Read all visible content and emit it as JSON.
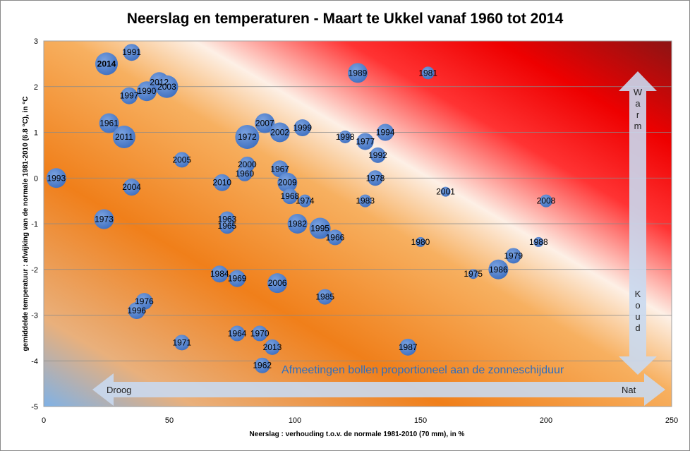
{
  "chart_data": {
    "type": "bubble",
    "title": "Neerslag en temperaturen - Maart te Ukkel vanaf 1960 tot 2014",
    "xlabel": "Neerslag : verhouding t.o.v. de normale 1981-2010 (70 mm), in %",
    "ylabel": "gemiddelde temperatuur : afwijking  van de normale 1981-2010 (6.8 °C), in °C",
    "xlim": [
      0,
      250
    ],
    "ylim": [
      -5,
      3
    ],
    "x_ticks": [
      "0",
      "50",
      "100",
      "150",
      "200",
      "250"
    ],
    "y_ticks": [
      "3",
      "2",
      "1",
      "0",
      "-1",
      "-2",
      "-3",
      "-4",
      "-5"
    ],
    "grid": "horizontal",
    "highlight_year": "2014",
    "highlight_color": "#ffff00",
    "bubble_color": "#4f7fcf",
    "annotations": {
      "droog": "Droog",
      "nat": "Nat",
      "warm": "Warm",
      "koud": "Koud",
      "note": "Afmeetingen bollen proportioneel aan de zonneschijduur"
    },
    "points": [
      {
        "year": "2014",
        "x": 25,
        "y": 2.5,
        "size": 16
      },
      {
        "year": "1991",
        "x": 35,
        "y": 2.75,
        "size": 12
      },
      {
        "year": "2012",
        "x": 46,
        "y": 2.1,
        "size": 14
      },
      {
        "year": "2003",
        "x": 49,
        "y": 2.0,
        "size": 16
      },
      {
        "year": "1990",
        "x": 41,
        "y": 1.9,
        "size": 14
      },
      {
        "year": "1997",
        "x": 34,
        "y": 1.8,
        "size": 12
      },
      {
        "year": "1989",
        "x": 125,
        "y": 2.3,
        "size": 14
      },
      {
        "year": "1981",
        "x": 153,
        "y": 2.3,
        "size": 9
      },
      {
        "year": "1961",
        "x": 26,
        "y": 1.2,
        "size": 14
      },
      {
        "year": "2011",
        "x": 32,
        "y": 0.9,
        "size": 16
      },
      {
        "year": "2007",
        "x": 88,
        "y": 1.2,
        "size": 14
      },
      {
        "year": "1972",
        "x": 81,
        "y": 0.9,
        "size": 17
      },
      {
        "year": "2002",
        "x": 94,
        "y": 1.0,
        "size": 14
      },
      {
        "year": "1999",
        "x": 103,
        "y": 1.1,
        "size": 12
      },
      {
        "year": "1994",
        "x": 136,
        "y": 1.0,
        "size": 12
      },
      {
        "year": "1998",
        "x": 120,
        "y": 0.9,
        "size": 9
      },
      {
        "year": "1977",
        "x": 128,
        "y": 0.8,
        "size": 12
      },
      {
        "year": "1992",
        "x": 133,
        "y": 0.5,
        "size": 11
      },
      {
        "year": "2005",
        "x": 55,
        "y": 0.4,
        "size": 11
      },
      {
        "year": "2000",
        "x": 81,
        "y": 0.3,
        "size": 11
      },
      {
        "year": "1960",
        "x": 80,
        "y": 0.1,
        "size": 11
      },
      {
        "year": "1967",
        "x": 94,
        "y": 0.2,
        "size": 12
      },
      {
        "year": "2010",
        "x": 71,
        "y": -0.1,
        "size": 12
      },
      {
        "year": "2009",
        "x": 97,
        "y": -0.1,
        "size": 14
      },
      {
        "year": "1978",
        "x": 132,
        "y": 0.0,
        "size": 11
      },
      {
        "year": "1993",
        "x": 5,
        "y": 0.0,
        "size": 14
      },
      {
        "year": "2004",
        "x": 35,
        "y": -0.2,
        "size": 12
      },
      {
        "year": "2001",
        "x": 160,
        "y": -0.3,
        "size": 7
      },
      {
        "year": "2008",
        "x": 200,
        "y": -0.5,
        "size": 9
      },
      {
        "year": "1968",
        "x": 98,
        "y": -0.4,
        "size": 11
      },
      {
        "year": "1974",
        "x": 104,
        "y": -0.5,
        "size": 9
      },
      {
        "year": "1983",
        "x": 128,
        "y": -0.5,
        "size": 9
      },
      {
        "year": "1973",
        "x": 24,
        "y": -0.9,
        "size": 14
      },
      {
        "year": "1963",
        "x": 73,
        "y": -0.9,
        "size": 11
      },
      {
        "year": "1965",
        "x": 73,
        "y": -1.05,
        "size": 11
      },
      {
        "year": "1982",
        "x": 101,
        "y": -1.0,
        "size": 14
      },
      {
        "year": "1995",
        "x": 110,
        "y": -1.1,
        "size": 15
      },
      {
        "year": "1966",
        "x": 116,
        "y": -1.3,
        "size": 11
      },
      {
        "year": "1980",
        "x": 150,
        "y": -1.4,
        "size": 7
      },
      {
        "year": "1988",
        "x": 197,
        "y": -1.4,
        "size": 7
      },
      {
        "year": "1979",
        "x": 187,
        "y": -1.7,
        "size": 11
      },
      {
        "year": "1975",
        "x": 171,
        "y": -2.1,
        "size": 7
      },
      {
        "year": "1986",
        "x": 181,
        "y": -2.0,
        "size": 14
      },
      {
        "year": "1984",
        "x": 70,
        "y": -2.1,
        "size": 12
      },
      {
        "year": "1969",
        "x": 77,
        "y": -2.2,
        "size": 12
      },
      {
        "year": "2006",
        "x": 93,
        "y": -2.3,
        "size": 14
      },
      {
        "year": "1985",
        "x": 112,
        "y": -2.6,
        "size": 11
      },
      {
        "year": "1976",
        "x": 40,
        "y": -2.7,
        "size": 12
      },
      {
        "year": "1996",
        "x": 37,
        "y": -2.9,
        "size": 12
      },
      {
        "year": "1964",
        "x": 77,
        "y": -3.4,
        "size": 11
      },
      {
        "year": "1970",
        "x": 86,
        "y": -3.4,
        "size": 11
      },
      {
        "year": "1971",
        "x": 55,
        "y": -3.6,
        "size": 11
      },
      {
        "year": "2013",
        "x": 91,
        "y": -3.7,
        "size": 11
      },
      {
        "year": "1987",
        "x": 145,
        "y": -3.7,
        "size": 12
      },
      {
        "year": "1962",
        "x": 87,
        "y": -4.1,
        "size": 11
      }
    ]
  }
}
